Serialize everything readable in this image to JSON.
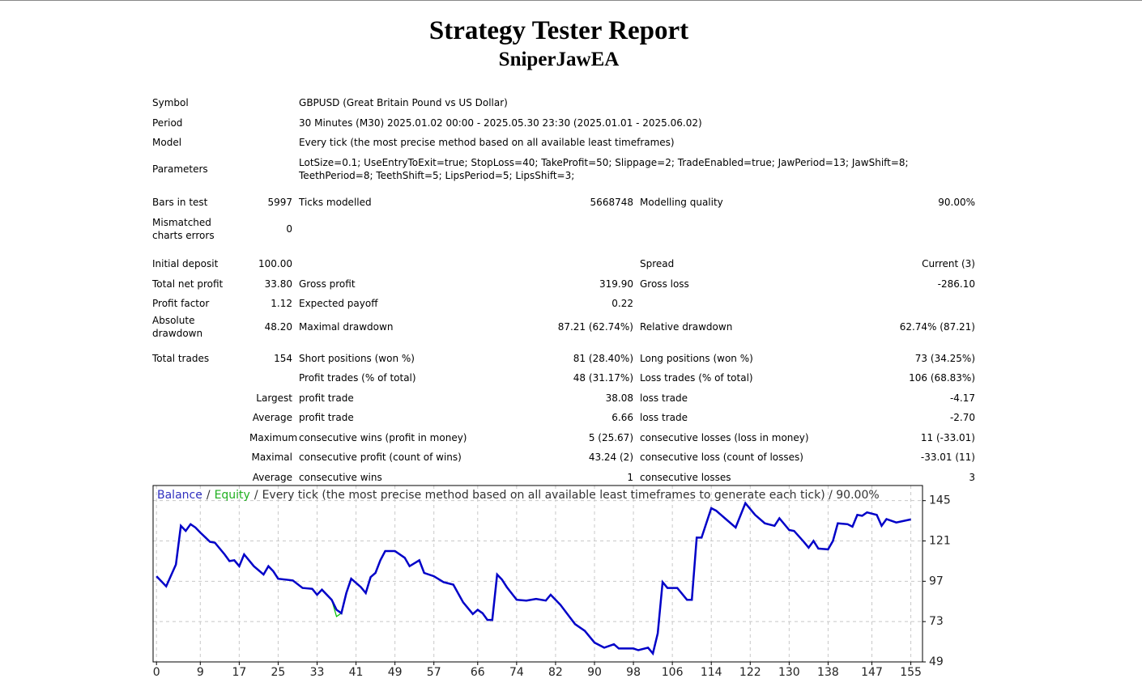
{
  "header": {
    "title": "Strategy Tester Report",
    "subtitle": "SniperJawEA"
  },
  "info": [
    [
      "Symbol",
      "GBPUSD (Great Britain Pound vs US Dollar)"
    ],
    [
      "Period",
      "30 Minutes (M30) 2025.01.02 00:00 - 2025.05.30 23:30 (2025.01.01 - 2025.06.02)"
    ],
    [
      "Model",
      "Every tick (the most precise method based on all available least timeframes)"
    ],
    [
      "Parameters",
      "LotSize=0.1; UseEntryToExit=true; StopLoss=40; TakeProfit=50; Slippage=2; TradeEnabled=true; JawPeriod=13; JawShift=8; TeethPeriod=8; TeethShift=5; LipsPeriod=5; LipsShift=3;"
    ]
  ],
  "stats": [
    [
      [
        "Bars in test",
        "5997",
        "Ticks modelled",
        "5668748",
        "Modelling quality",
        "90.00%"
      ],
      [
        "Mismatched charts errors",
        "0",
        null,
        null,
        null,
        null
      ]
    ],
    [
      [
        "Initial deposit",
        "100.00",
        null,
        null,
        "Spread",
        "Current (3)"
      ],
      [
        "Total net profit",
        "33.80",
        "Gross profit",
        "319.90",
        "Gross loss",
        "-286.10"
      ],
      [
        "Profit factor",
        "1.12",
        "Expected payoff",
        "0.22",
        null,
        null
      ],
      [
        "Absolute drawdown",
        "48.20",
        "Maximal drawdown",
        "87.21 (62.74%)",
        "Relative drawdown",
        "62.74% (87.21)"
      ]
    ],
    [
      [
        "Total trades",
        "154",
        "Short positions (won %)",
        "81 (28.40%)",
        "Long positions (won %)",
        "73 (34.25%)"
      ],
      [
        null,
        null,
        "Profit trades (% of total)",
        "48 (31.17%)",
        "Loss trades (% of total)",
        "106 (68.83%)"
      ],
      [
        null,
        "Largest",
        "profit trade",
        "38.08",
        "loss trade",
        "-4.17"
      ],
      [
        null,
        "Average",
        "profit trade",
        "6.66",
        "loss trade",
        "-2.70"
      ],
      [
        null,
        "Maximum",
        "consecutive wins (profit in money)",
        "5 (25.67)",
        "consecutive losses (loss in money)",
        "11 (-33.01)"
      ],
      [
        null,
        "Maximal",
        "consecutive profit (count of wins)",
        "43.24 (2)",
        "consecutive loss (count of losses)",
        "-33.01 (11)"
      ],
      [
        null,
        "Average",
        "consecutive wins",
        "1",
        "consecutive losses",
        "3"
      ]
    ]
  ],
  "chart_data": {
    "type": "line",
    "legend_separator": "/",
    "legend_note": "Every tick (the most precise method based on all available least timeframes to generate each tick) / 90.00%",
    "series": [
      {
        "name": "Balance",
        "color": "#0000c8",
        "x": [
          0,
          2,
          4,
          5,
          6,
          7,
          8,
          9,
          11,
          12,
          14,
          15,
          16,
          17,
          18,
          20,
          22,
          23,
          24,
          25,
          28,
          30,
          32,
          33,
          34,
          36,
          37,
          38,
          39,
          40,
          42,
          43,
          44,
          45,
          46,
          47,
          49,
          51,
          52,
          54,
          55,
          57,
          59,
          61,
          63,
          65,
          66,
          67,
          68,
          69,
          70,
          71,
          72,
          74,
          76,
          78,
          80,
          81,
          83,
          86,
          88,
          90,
          92,
          94,
          95,
          96,
          98,
          99,
          101,
          102,
          103,
          104,
          105,
          107,
          109,
          110,
          111,
          112,
          114,
          115,
          117,
          119,
          121,
          123,
          125,
          127,
          128,
          130,
          131,
          133,
          134,
          135,
          136,
          138,
          139,
          140,
          142,
          143,
          144,
          145,
          146,
          148,
          149,
          150,
          152,
          155
        ],
        "values": [
          100,
          94,
          107,
          130,
          127,
          131,
          129,
          126,
          120.5,
          120,
          113,
          109,
          109.5,
          106,
          113,
          106,
          101,
          106,
          103,
          98.5,
          97.5,
          93,
          92.5,
          89,
          92,
          86,
          80,
          78,
          90,
          98.5,
          93.5,
          90,
          99.5,
          102,
          109.5,
          115,
          115,
          111,
          106,
          109.5,
          102,
          100,
          96.5,
          95,
          84.5,
          77.5,
          80,
          78,
          74,
          74,
          101,
          98,
          93.5,
          86,
          85.5,
          86.5,
          85.5,
          89,
          83,
          71.5,
          67.5,
          60.5,
          57.5,
          59.5,
          57,
          57,
          57,
          56,
          57.5,
          54,
          66,
          96.5,
          93,
          93,
          86,
          86,
          123,
          123,
          140.5,
          139,
          134,
          129,
          143.5,
          136.5,
          131.5,
          130,
          134.5,
          127.5,
          127,
          120.5,
          117,
          121,
          116.5,
          116,
          121,
          131.5,
          131,
          129.5,
          136.5,
          136,
          138,
          136.5,
          130,
          134,
          132,
          133.8
        ]
      },
      {
        "name": "Equity",
        "color": "#00c000",
        "x": [
          36,
          37,
          38
        ],
        "values": [
          86,
          76,
          78
        ]
      }
    ],
    "xlim": [
      -0.7,
      157.4
    ],
    "ylim": [
      49,
      154
    ],
    "xticks": [
      0,
      9,
      17,
      25,
      33,
      41,
      49,
      57,
      66,
      74,
      82,
      90,
      98,
      106,
      114,
      122,
      130,
      138,
      147,
      155
    ],
    "yticks": [
      49,
      73,
      97,
      121,
      145
    ],
    "grid": true
  }
}
